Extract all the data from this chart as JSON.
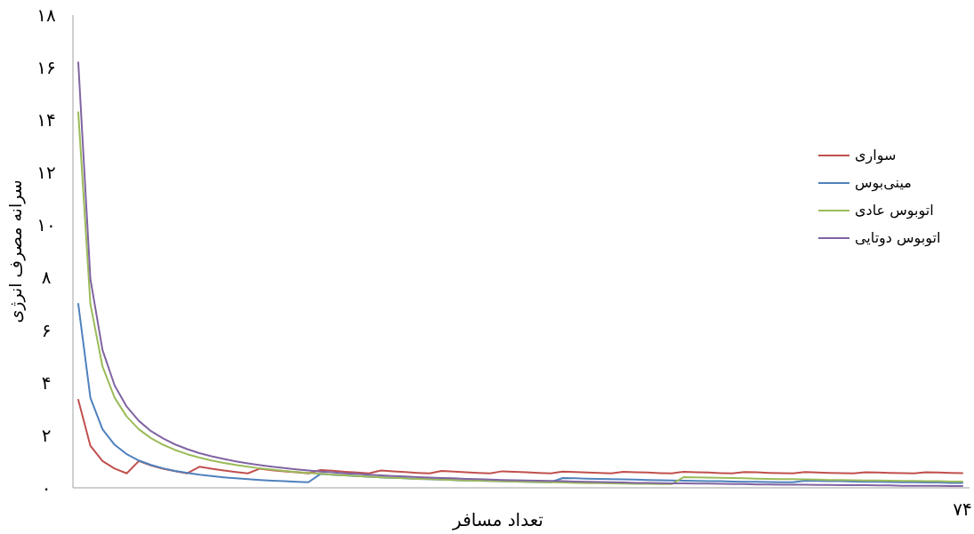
{
  "chart_data": {
    "type": "line",
    "xlabel": "تعداد مسافر",
    "ylabel": "سرانه مصرف انرژی",
    "categories": [
      null,
      null,
      null,
      null,
      null,
      null,
      null,
      null,
      null,
      null,
      null,
      null,
      null,
      null,
      null,
      null,
      null,
      null,
      null,
      null,
      null,
      null,
      null,
      null,
      null,
      null,
      null,
      null,
      null,
      null,
      null,
      null,
      null,
      null,
      null,
      null,
      null,
      null,
      null,
      null,
      null,
      null,
      null,
      null,
      null,
      null,
      null,
      null,
      null,
      null,
      null,
      null,
      null,
      null,
      null,
      null,
      null,
      null,
      null,
      null,
      null,
      null,
      null,
      null,
      null,
      null,
      null,
      null,
      null,
      null,
      null,
      null,
      null,
      "۷۴"
    ],
    "ylim": [
      0,
      18
    ],
    "yticks": [
      {
        "value": 0,
        "label": "۰"
      },
      {
        "value": 2,
        "label": "۲"
      },
      {
        "value": 4,
        "label": "۴"
      },
      {
        "value": 6,
        "label": "۶"
      },
      {
        "value": 8,
        "label": "۸"
      },
      {
        "value": 10,
        "label": "۱۰"
      },
      {
        "value": 12,
        "label": "۱۲"
      },
      {
        "value": 14,
        "label": "۱۴"
      },
      {
        "value": 16,
        "label": "۱۶"
      },
      {
        "value": 18,
        "label": "۱۸"
      }
    ],
    "grid": false,
    "legend": "right",
    "series": [
      {
        "name": "سواری",
        "color": "#c0504d",
        "values": [
          3.35,
          1.6,
          1.02,
          0.73,
          0.55,
          1.02,
          0.85,
          0.73,
          0.63,
          0.55,
          0.8,
          0.73,
          0.66,
          0.6,
          0.55,
          0.73,
          0.67,
          0.63,
          0.59,
          0.55,
          0.68,
          0.65,
          0.61,
          0.58,
          0.55,
          0.66,
          0.63,
          0.6,
          0.57,
          0.55,
          0.64,
          0.62,
          0.59,
          0.57,
          0.55,
          0.63,
          0.61,
          0.59,
          0.57,
          0.55,
          0.62,
          0.6,
          0.58,
          0.57,
          0.55,
          0.61,
          0.59,
          0.58,
          0.56,
          0.55,
          0.61,
          0.59,
          0.58,
          0.56,
          0.55,
          0.6,
          0.59,
          0.57,
          0.56,
          0.55,
          0.6,
          0.58,
          0.57,
          0.56,
          0.55,
          0.59,
          0.58,
          0.57,
          0.56,
          0.55,
          0.59,
          0.58,
          0.57,
          0.56
        ]
      },
      {
        "name": "مینی‌بوس",
        "color": "#4f81bd",
        "values": [
          7.0,
          3.43,
          2.23,
          1.64,
          1.28,
          1.04,
          0.87,
          0.74,
          0.64,
          0.57,
          0.5,
          0.45,
          0.4,
          0.36,
          0.33,
          0.3,
          0.27,
          0.25,
          0.23,
          0.21,
          0.53,
          0.5,
          0.47,
          0.45,
          0.42,
          0.4,
          0.38,
          0.36,
          0.34,
          0.33,
          0.31,
          0.3,
          0.28,
          0.27,
          0.26,
          0.25,
          0.24,
          0.23,
          0.22,
          0.21,
          0.37,
          0.36,
          0.35,
          0.34,
          0.33,
          0.32,
          0.31,
          0.3,
          0.29,
          0.28,
          0.27,
          0.26,
          0.25,
          0.25,
          0.24,
          0.23,
          0.23,
          0.22,
          0.21,
          0.21,
          0.27,
          0.26,
          0.25,
          0.25,
          0.24,
          0.23,
          0.23,
          0.22,
          0.21,
          0.21,
          0.2,
          0.2,
          0.19,
          0.19
        ]
      },
      {
        "name": "اتوبوس عادی",
        "color": "#9bbb59",
        "values": [
          14.3,
          7.0,
          4.62,
          3.43,
          2.71,
          2.23,
          1.89,
          1.64,
          1.44,
          1.28,
          1.15,
          1.04,
          0.95,
          0.87,
          0.8,
          0.74,
          0.69,
          0.64,
          0.6,
          0.57,
          0.53,
          0.5,
          0.47,
          0.45,
          0.42,
          0.4,
          0.38,
          0.36,
          0.34,
          0.33,
          0.31,
          0.3,
          0.28,
          0.27,
          0.26,
          0.25,
          0.24,
          0.23,
          0.22,
          0.21,
          0.2,
          0.19,
          0.18,
          0.18,
          0.17,
          0.16,
          0.15,
          0.15,
          0.14,
          0.14,
          0.41,
          0.4,
          0.39,
          0.38,
          0.37,
          0.36,
          0.35,
          0.34,
          0.33,
          0.33,
          0.32,
          0.31,
          0.3,
          0.3,
          0.29,
          0.28,
          0.28,
          0.27,
          0.26,
          0.26,
          0.25,
          0.25,
          0.24,
          0.24
        ]
      },
      {
        "name": "اتوبوس دوتایی",
        "color": "#8064a2",
        "values": [
          16.2,
          7.95,
          5.25,
          3.9,
          3.09,
          2.55,
          2.16,
          1.88,
          1.65,
          1.47,
          1.32,
          1.2,
          1.1,
          1.01,
          0.93,
          0.86,
          0.8,
          0.75,
          0.7,
          0.66,
          0.62,
          0.59,
          0.55,
          0.53,
          0.5,
          0.47,
          0.45,
          0.43,
          0.41,
          0.39,
          0.37,
          0.36,
          0.34,
          0.33,
          0.31,
          0.3,
          0.29,
          0.28,
          0.27,
          0.26,
          0.25,
          0.24,
          0.23,
          0.22,
          0.21,
          0.2,
          0.19,
          0.19,
          0.18,
          0.17,
          0.17,
          0.16,
          0.16,
          0.15,
          0.14,
          0.14,
          0.13,
          0.13,
          0.12,
          0.12,
          0.12,
          0.11,
          0.11,
          0.1,
          0.1,
          0.1,
          0.09,
          0.09,
          0.08,
          0.08,
          0.08,
          0.08,
          0.07,
          0.07
        ]
      }
    ]
  }
}
